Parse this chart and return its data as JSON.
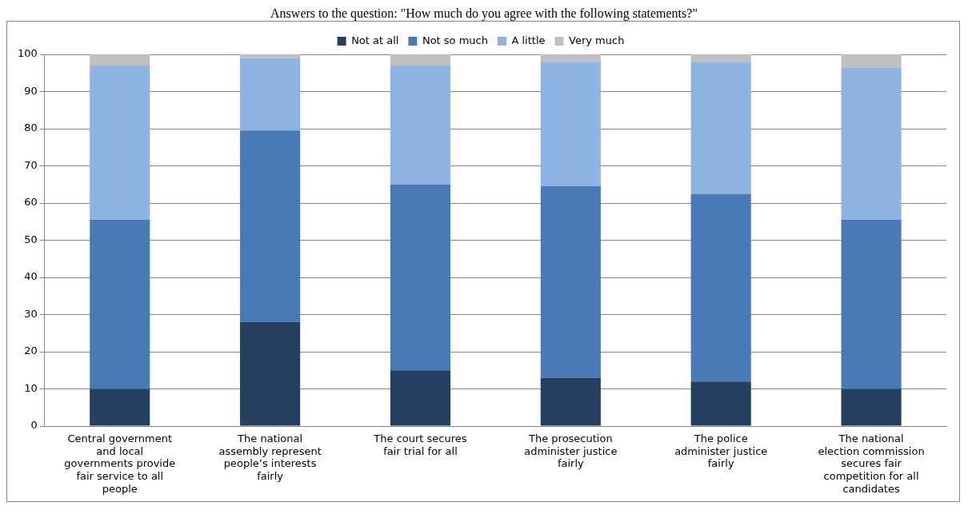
{
  "chart_data": {
    "type": "bar",
    "title": "Answers to the question: \"How much do you agree with the following statements?\"",
    "categories": [
      "Central government and local governments provide fair service to all people",
      "The national assembly represent people’s interests fairly",
      "The court secures fair trial for all",
      "The prosecution administer justice fairly",
      "The police administer justice fairly",
      "The national election commission secures fair competition for all candidates"
    ],
    "stacked": true,
    "series": [
      {
        "name": "Not at all",
        "color": "#243f60",
        "values": [
          10,
          28,
          15,
          13,
          12,
          10
        ]
      },
      {
        "name": "Not so much",
        "color": "#4a7ab5",
        "values": [
          45.5,
          51.5,
          50,
          51.5,
          50.5,
          45.5
        ]
      },
      {
        "name": "A little",
        "color": "#8eb4e3",
        "values": [
          41.5,
          19.5,
          32,
          33.5,
          35.5,
          41
        ]
      },
      {
        "name": "Very much",
        "color": "#c0c0c0",
        "values": [
          3,
          1,
          3,
          2,
          2,
          3.5
        ]
      }
    ],
    "ylim": [
      0,
      100
    ],
    "yticks": [
      0,
      10,
      20,
      30,
      40,
      50,
      60,
      70,
      80,
      90,
      100
    ],
    "grid": "y",
    "legend": "top"
  }
}
